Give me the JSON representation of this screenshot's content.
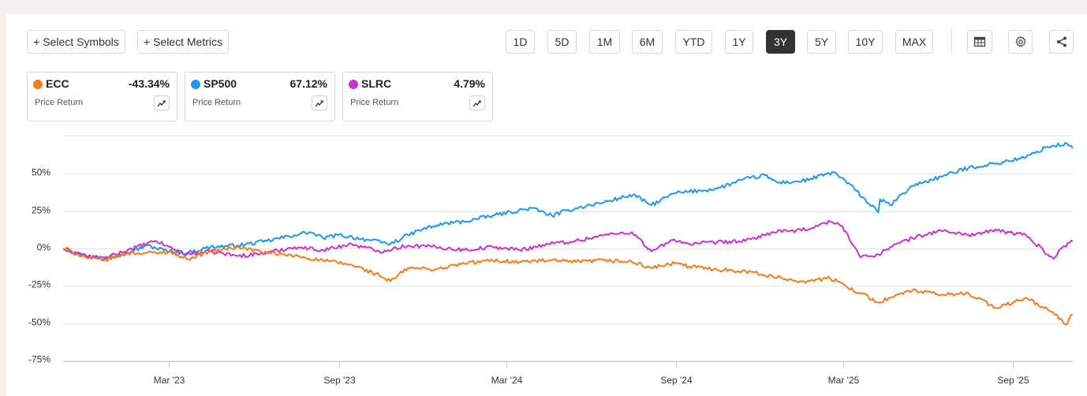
{
  "toolbar": {
    "select_symbols": "+ Select Symbols",
    "select_metrics": "+ Select Metrics",
    "ranges": [
      "1D",
      "5D",
      "1M",
      "6M",
      "YTD",
      "1Y",
      "3Y",
      "5Y",
      "10Y",
      "MAX"
    ],
    "active_range": "3Y",
    "icons": [
      "table-icon",
      "gear-icon",
      "share-icon"
    ]
  },
  "cards": [
    {
      "symbol": "ECC",
      "pct": "-43.34%",
      "metric": "Price Return",
      "color": "#f57c1f"
    },
    {
      "symbol": "SP500",
      "pct": "67.12%",
      "metric": "Price Return",
      "color": "#2196f3"
    },
    {
      "symbol": "SLRC",
      "pct": "4.79%",
      "metric": "Price Return",
      "color": "#cc33cc"
    }
  ],
  "chart_data": {
    "type": "line",
    "y_ticks": [
      "50%",
      "25%",
      "0%",
      "-25%",
      "-50%",
      "-75%"
    ],
    "y_tick_values": [
      50,
      25,
      0,
      -25,
      -50,
      -75
    ],
    "x_ticks": [
      "Mar '23",
      "Sep '23",
      "Mar '24",
      "Sep '24",
      "Mar '25",
      "Sep '25"
    ],
    "x_tick_dates": [
      "2023-03-01",
      "2023-09-01",
      "2024-03-01",
      "2024-09-01",
      "2025-03-01",
      "2025-09-01"
    ],
    "x_range": [
      "2022-11-06",
      "2025-11-05"
    ],
    "ylim": [
      -80,
      75
    ],
    "grid": true,
    "series": [
      {
        "name": "SP500",
        "color": "#2196f3",
        "points": [
          [
            "2022-11-06",
            0
          ],
          [
            "2022-12-01",
            -5
          ],
          [
            "2022-12-20",
            -6
          ],
          [
            "2023-01-15",
            -3
          ],
          [
            "2023-02-05",
            2
          ],
          [
            "2023-03-01",
            -2
          ],
          [
            "2023-03-20",
            -3
          ],
          [
            "2023-04-15",
            1
          ],
          [
            "2023-05-15",
            2
          ],
          [
            "2023-06-15",
            5
          ],
          [
            "2023-07-15",
            9
          ],
          [
            "2023-07-31",
            11
          ],
          [
            "2023-08-15",
            7
          ],
          [
            "2023-09-01",
            9
          ],
          [
            "2023-10-01",
            6
          ],
          [
            "2023-10-27",
            3
          ],
          [
            "2023-11-15",
            9
          ],
          [
            "2023-12-01",
            13
          ],
          [
            "2023-12-28",
            17
          ],
          [
            "2024-01-15",
            18
          ],
          [
            "2024-02-15",
            22
          ],
          [
            "2024-03-28",
            27
          ],
          [
            "2024-04-19",
            22
          ],
          [
            "2024-05-15",
            27
          ],
          [
            "2024-06-15",
            31
          ],
          [
            "2024-07-16",
            36
          ],
          [
            "2024-08-05",
            29
          ],
          [
            "2024-08-30",
            37
          ],
          [
            "2024-09-15",
            38
          ],
          [
            "2024-10-15",
            40
          ],
          [
            "2024-11-12",
            46
          ],
          [
            "2024-12-06",
            49
          ],
          [
            "2024-12-20",
            44
          ],
          [
            "2025-01-15",
            45
          ],
          [
            "2025-02-19",
            51
          ],
          [
            "2025-03-13",
            40
          ],
          [
            "2025-04-08",
            24
          ],
          [
            "2025-04-10",
            33
          ],
          [
            "2025-04-21",
            29
          ],
          [
            "2025-05-15",
            42
          ],
          [
            "2025-06-15",
            48
          ],
          [
            "2025-07-15",
            54
          ],
          [
            "2025-08-15",
            57
          ],
          [
            "2025-09-15",
            61
          ],
          [
            "2025-10-08",
            68
          ],
          [
            "2025-10-30",
            70
          ],
          [
            "2025-11-05",
            67
          ]
        ]
      },
      {
        "name": "SLRC",
        "color": "#cc33cc",
        "points": [
          [
            "2022-11-06",
            0
          ],
          [
            "2022-12-01",
            -5
          ],
          [
            "2022-12-20",
            -7
          ],
          [
            "2023-01-15",
            -1
          ],
          [
            "2023-02-15",
            5
          ],
          [
            "2023-03-01",
            1
          ],
          [
            "2023-03-20",
            -4
          ],
          [
            "2023-04-15",
            -2
          ],
          [
            "2023-05-15",
            -5
          ],
          [
            "2023-06-15",
            -3
          ],
          [
            "2023-07-15",
            1
          ],
          [
            "2023-08-15",
            -1
          ],
          [
            "2023-09-15",
            3
          ],
          [
            "2023-10-15",
            -2
          ],
          [
            "2023-11-15",
            2
          ],
          [
            "2023-12-15",
            1
          ],
          [
            "2024-01-15",
            -1
          ],
          [
            "2024-02-15",
            1
          ],
          [
            "2024-03-15",
            -1
          ],
          [
            "2024-04-15",
            3
          ],
          [
            "2024-05-15",
            5
          ],
          [
            "2024-06-15",
            9
          ],
          [
            "2024-07-15",
            11
          ],
          [
            "2024-08-05",
            -2
          ],
          [
            "2024-08-30",
            6
          ],
          [
            "2024-09-15",
            3
          ],
          [
            "2024-10-15",
            4
          ],
          [
            "2024-11-15",
            5
          ],
          [
            "2024-12-15",
            11
          ],
          [
            "2025-01-15",
            12
          ],
          [
            "2025-02-15",
            18
          ],
          [
            "2025-02-28",
            15
          ],
          [
            "2025-03-20",
            -6
          ],
          [
            "2025-04-08",
            -4
          ],
          [
            "2025-04-21",
            1
          ],
          [
            "2025-05-15",
            7
          ],
          [
            "2025-06-15",
            12
          ],
          [
            "2025-07-15",
            9
          ],
          [
            "2025-08-15",
            12
          ],
          [
            "2025-09-15",
            9
          ],
          [
            "2025-10-15",
            -7
          ],
          [
            "2025-10-25",
            1
          ],
          [
            "2025-11-05",
            5
          ]
        ]
      },
      {
        "name": "ECC",
        "color": "#f57c1f",
        "points": [
          [
            "2022-11-06",
            0
          ],
          [
            "2022-12-01",
            -6
          ],
          [
            "2022-12-20",
            -8
          ],
          [
            "2023-01-15",
            -3
          ],
          [
            "2023-02-15",
            -3
          ],
          [
            "2023-03-01",
            -2
          ],
          [
            "2023-03-20",
            -7
          ],
          [
            "2023-04-15",
            -2
          ],
          [
            "2023-05-15",
            1
          ],
          [
            "2023-06-15",
            -3
          ],
          [
            "2023-07-15",
            -5
          ],
          [
            "2023-08-15",
            -8
          ],
          [
            "2023-09-15",
            -11
          ],
          [
            "2023-10-15",
            -18
          ],
          [
            "2023-10-27",
            -22
          ],
          [
            "2023-11-15",
            -13
          ],
          [
            "2023-12-15",
            -14
          ],
          [
            "2024-01-15",
            -10
          ],
          [
            "2024-02-15",
            -8
          ],
          [
            "2024-03-15",
            -9
          ],
          [
            "2024-04-15",
            -8
          ],
          [
            "2024-05-15",
            -9
          ],
          [
            "2024-06-15",
            -8
          ],
          [
            "2024-07-15",
            -9
          ],
          [
            "2024-08-05",
            -13
          ],
          [
            "2024-08-30",
            -10
          ],
          [
            "2024-09-15",
            -12
          ],
          [
            "2024-10-15",
            -14
          ],
          [
            "2024-11-15",
            -15
          ],
          [
            "2024-12-15",
            -19
          ],
          [
            "2025-01-15",
            -22
          ],
          [
            "2025-02-15",
            -20
          ],
          [
            "2025-03-20",
            -30
          ],
          [
            "2025-04-08",
            -36
          ],
          [
            "2025-04-21",
            -33
          ],
          [
            "2025-05-15",
            -28
          ],
          [
            "2025-06-15",
            -31
          ],
          [
            "2025-07-15",
            -30
          ],
          [
            "2025-08-15",
            -40
          ],
          [
            "2025-09-15",
            -33
          ],
          [
            "2025-10-15",
            -43
          ],
          [
            "2025-10-28",
            -51
          ],
          [
            "2025-11-05",
            -44
          ]
        ]
      }
    ]
  }
}
